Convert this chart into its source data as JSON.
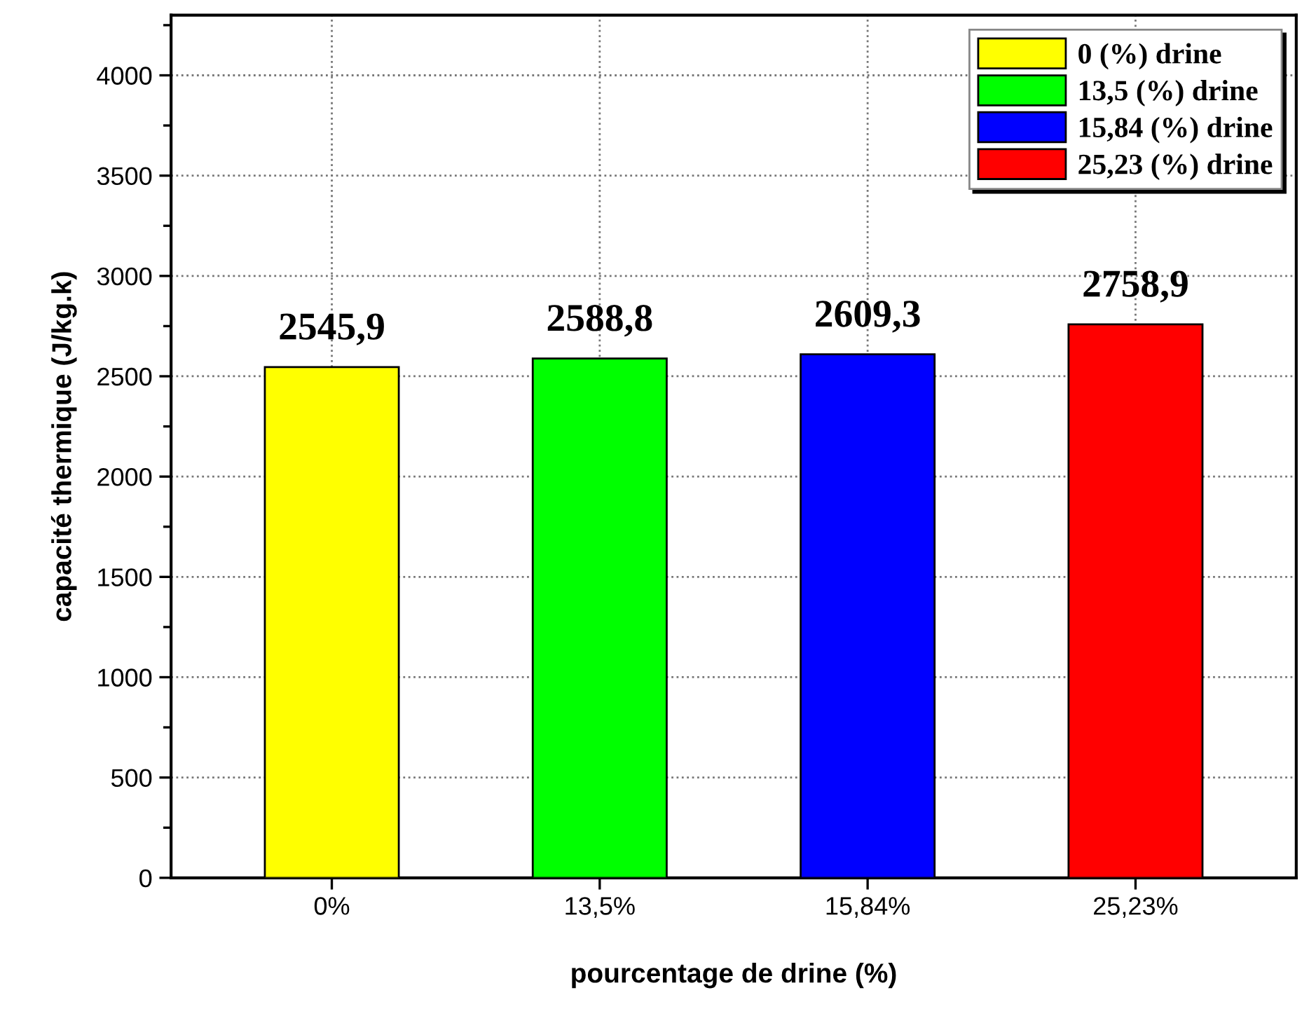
{
  "chart_data": {
    "type": "bar",
    "xlabel": "pourcentage de drine (%)",
    "ylabel": "capacité thermique (J/kg.k)",
    "categories": [
      "0%",
      "13,5%",
      "15,84%",
      "25,23%"
    ],
    "series": [
      {
        "name": "0 (%) drine",
        "color": "#ffff00",
        "values": [
          2545.9,
          null,
          null,
          null
        ],
        "value_labels": [
          "2545,9",
          null,
          null,
          null
        ]
      },
      {
        "name": "13,5 (%) drine",
        "color": "#00ff00",
        "values": [
          null,
          2588.8,
          null,
          null
        ],
        "value_labels": [
          null,
          "2588,8",
          null,
          null
        ]
      },
      {
        "name": "15,84 (%) drine",
        "color": "#0000ff",
        "values": [
          null,
          null,
          2609.3,
          null
        ],
        "value_labels": [
          null,
          null,
          "2609,3",
          null
        ]
      },
      {
        "name": "25,23 (%) drine",
        "color": "#ff0000",
        "values": [
          null,
          null,
          null,
          2758.9
        ],
        "value_labels": [
          null,
          null,
          null,
          "2758,9"
        ]
      }
    ],
    "ylim": [
      0,
      4300
    ],
    "yticks": [
      0,
      500,
      1000,
      1500,
      2000,
      2500,
      3000,
      3500,
      4000
    ],
    "grid": true,
    "legend": "top right"
  }
}
